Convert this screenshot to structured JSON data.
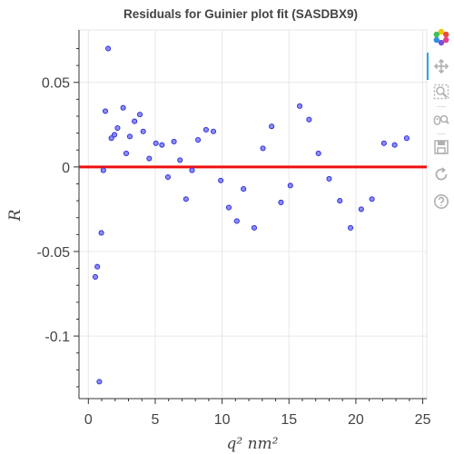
{
  "chart_data": {
    "type": "scatter",
    "title": "Residuals for Guinier plot fit (SASDBX9)",
    "xlabel": "q² nm²",
    "ylabel": "R",
    "xlim": [
      -0.7,
      25.3
    ],
    "ylim": [
      -0.137,
      0.081
    ],
    "xticks": [
      0,
      5,
      10,
      15,
      20,
      25
    ],
    "xtick_labels": [
      "0",
      "5",
      "10",
      "15",
      "20",
      "25"
    ],
    "yticks": [
      0.05,
      0,
      -0.05,
      -0.1
    ],
    "ytick_labels": [
      "0.05",
      "0",
      "-0.05",
      "-0.1"
    ],
    "grid": true,
    "series": [
      {
        "marker": "circle",
        "color": "#8b8cf6",
        "edge_color": "#2b2bd8",
        "x": [
          0.52,
          0.67,
          0.82,
          0.97,
          1.12,
          1.27,
          1.48,
          1.72,
          1.95,
          2.18,
          2.6,
          2.83,
          3.1,
          3.45,
          3.85,
          4.1,
          4.55,
          5.05,
          5.5,
          5.95,
          6.4,
          6.85,
          7.3,
          7.75,
          8.2,
          8.8,
          9.35,
          9.9,
          10.5,
          11.1,
          11.6,
          12.4,
          13.05,
          13.7,
          14.4,
          15.1,
          15.8,
          16.5,
          17.2,
          18,
          18.8,
          19.6,
          20.4,
          21.2,
          22.1,
          22.9,
          23.8
        ],
        "y": [
          -0.065,
          -0.059,
          -0.127,
          -0.039,
          -0.002,
          0.033,
          0.07,
          0.017,
          0.019,
          0.023,
          0.035,
          0.008,
          0.018,
          0.027,
          0.031,
          0.021,
          0.005,
          0.014,
          0.013,
          -0.006,
          0.015,
          0.004,
          -0.019,
          -0.002,
          0.016,
          0.022,
          0.021,
          -0.008,
          -0.024,
          -0.032,
          -0.013,
          -0.036,
          0.011,
          0.024,
          -0.021,
          -0.011,
          0.036,
          0.028,
          0.008,
          -0.007,
          -0.02,
          -0.036,
          -0.025,
          -0.019,
          0.014,
          0.013,
          0.017
        ]
      }
    ],
    "reference_line": {
      "y": 0,
      "color": "#ee1111"
    }
  },
  "toolbar": {
    "logo_icon": "bokeh-logo-icon",
    "items": [
      {
        "name": "pan-icon"
      },
      {
        "name": "box-zoom-icon"
      },
      {
        "name": "wheel-zoom-icon"
      },
      {
        "name": "save-icon"
      },
      {
        "name": "reset-icon"
      },
      {
        "name": "help-icon"
      }
    ],
    "active_color": "#26aae1",
    "icon_color": "#b0b0b0"
  }
}
